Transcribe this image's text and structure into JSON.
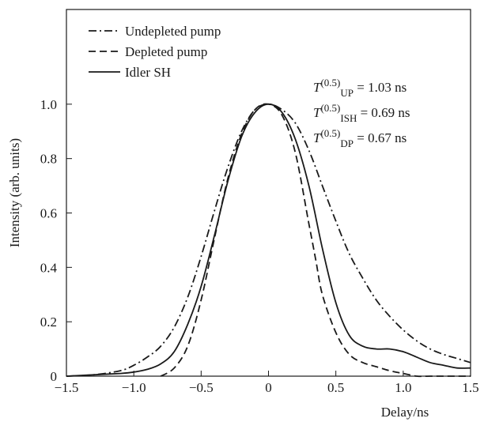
{
  "chart_data": {
    "type": "line",
    "title": "",
    "xlabel": "Delay/ns",
    "ylabel": "Intensity (arb. units)",
    "xlim": [
      -1.5,
      1.5
    ],
    "ylim": [
      0,
      1.2
    ],
    "xticks": [
      -1.5,
      -1.0,
      -0.5,
      0,
      0.5,
      1.0,
      1.5
    ],
    "xtick_labels": [
      "−1.5",
      "−1.0",
      "−0.5",
      "0",
      "0.5",
      "1.0",
      "1.5"
    ],
    "yticks": [
      0,
      0.2,
      0.4,
      0.6,
      0.8,
      1.0
    ],
    "ytick_labels": [
      "0",
      "0.2",
      "0.4",
      "0.6",
      "0.8",
      "1.0"
    ],
    "grid": false,
    "legend_position": "top-left",
    "series": [
      {
        "name": "Undepleted pump",
        "style": "dash-dot",
        "x": [
          -1.5,
          -1.3,
          -1.1,
          -1.0,
          -0.9,
          -0.8,
          -0.7,
          -0.6,
          -0.5,
          -0.4,
          -0.3,
          -0.2,
          -0.1,
          0.0,
          0.1,
          0.2,
          0.3,
          0.4,
          0.5,
          0.6,
          0.7,
          0.8,
          0.9,
          1.0,
          1.1,
          1.2,
          1.3,
          1.4,
          1.5
        ],
        "y": [
          0.0,
          0.005,
          0.02,
          0.04,
          0.07,
          0.11,
          0.18,
          0.29,
          0.44,
          0.61,
          0.77,
          0.9,
          0.98,
          1.0,
          0.98,
          0.93,
          0.83,
          0.7,
          0.57,
          0.45,
          0.36,
          0.28,
          0.22,
          0.17,
          0.13,
          0.1,
          0.08,
          0.065,
          0.05
        ]
      },
      {
        "name": "Depleted pump",
        "style": "dashed",
        "x": [
          -0.8,
          -0.7,
          -0.6,
          -0.5,
          -0.4,
          -0.3,
          -0.2,
          -0.1,
          0.0,
          0.1,
          0.2,
          0.3,
          0.35,
          0.4,
          0.5,
          0.6,
          0.7,
          0.8,
          0.9,
          1.0,
          1.1,
          1.2,
          1.3,
          1.4,
          1.5
        ],
        "y": [
          0.0,
          0.03,
          0.11,
          0.28,
          0.51,
          0.73,
          0.89,
          0.98,
          1.0,
          0.96,
          0.82,
          0.56,
          0.43,
          0.3,
          0.16,
          0.08,
          0.05,
          0.035,
          0.02,
          0.01,
          0.0,
          0.0,
          0.0,
          0.0,
          0.0
        ]
      },
      {
        "name": "Idler SH",
        "style": "solid",
        "x": [
          -1.5,
          -1.3,
          -1.1,
          -1.0,
          -0.9,
          -0.8,
          -0.7,
          -0.6,
          -0.5,
          -0.4,
          -0.3,
          -0.2,
          -0.1,
          0.0,
          0.1,
          0.2,
          0.3,
          0.4,
          0.5,
          0.6,
          0.7,
          0.8,
          0.9,
          1.0,
          1.1,
          1.2,
          1.3,
          1.4,
          1.5
        ],
        "y": [
          0.0,
          0.005,
          0.01,
          0.015,
          0.025,
          0.045,
          0.09,
          0.19,
          0.33,
          0.52,
          0.72,
          0.88,
          0.97,
          1.0,
          0.97,
          0.87,
          0.7,
          0.47,
          0.27,
          0.15,
          0.11,
          0.1,
          0.1,
          0.09,
          0.07,
          0.05,
          0.04,
          0.03,
          0.03
        ]
      }
    ],
    "annotations": [
      {
        "base": "T",
        "sup": "(0.5)",
        "sub": "UP",
        "value": " = 1.03 ns"
      },
      {
        "base": "T",
        "sup": "(0.5)",
        "sub": "ISH",
        "value": " = 0.69 ns"
      },
      {
        "base": "T",
        "sup": "(0.5)",
        "sub": "DP",
        "value": " = 0.67 ns"
      }
    ]
  }
}
